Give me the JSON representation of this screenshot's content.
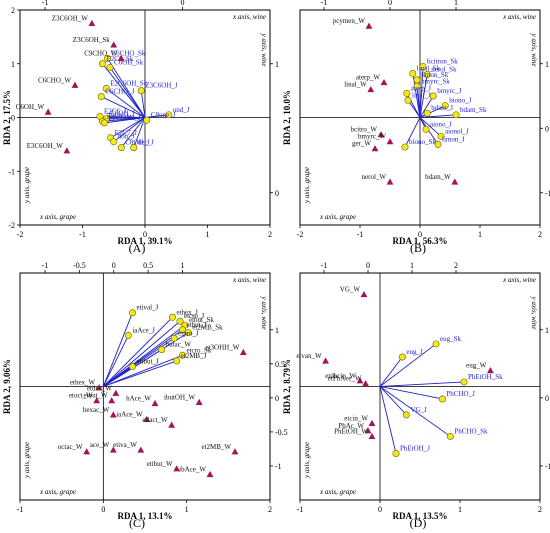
{
  "chart_data": [
    {
      "type": "scatter",
      "panel_label": "(A)",
      "xlabel": "RDA 1, 39.1%",
      "ylabel": "RDA 2, 17.5%",
      "corner_labels": {
        "top_right": "x axis, wine",
        "right_side": "y axis, wine",
        "left_side": "y axis, grape",
        "bottom_left": "x axis, grape"
      },
      "bottom_axis": {
        "ticks": [
          -2,
          -1,
          0,
          1,
          2
        ]
      },
      "top_axis": {
        "ticks": [
          -1,
          0
        ]
      },
      "right_axis": {
        "ticks": [
          1,
          0
        ]
      },
      "left_axis": {
        "ticks": [
          2,
          1,
          0,
          -1,
          -2
        ]
      },
      "series": [
        {
          "name": "grape",
          "marker": "circle",
          "color": "#f5e61e",
          "label_color": "#1f1fd6",
          "points": [
            {
              "label": "C6CHO_Sk",
              "x": -0.6,
              "y": 1.1
            },
            {
              "label": "E2C6_Sk",
              "x": -0.68,
              "y": 1.0
            },
            {
              "label": "C6OH_Sk",
              "x": -0.56,
              "y": 0.93
            },
            {
              "label": "E2C6OH_Sk",
              "x": -0.62,
              "y": 0.54
            },
            {
              "label": "C6CHO_J",
              "x": -0.7,
              "y": 0.39
            },
            {
              "label": "Z3C6OH_J",
              "x": -0.06,
              "y": 0.5
            },
            {
              "label": "und_J",
              "x": 0.38,
              "y": 0.05
            },
            {
              "label": "C8one_J",
              "x": 0.03,
              "y": -0.05
            },
            {
              "label": "E2C6_J",
              "x": -0.72,
              "y": 0.02
            },
            {
              "label": "C6OH_J",
              "x": -0.62,
              "y": -0.02
            },
            {
              "label": "Z3C6_J",
              "x": -0.68,
              "y": -0.07
            },
            {
              "label": "E2C6OH_J",
              "x": -0.65,
              "y": -0.1
            },
            {
              "label": "E2C7_J",
              "x": -0.55,
              "y": -0.38
            },
            {
              "label": "non_J",
              "x": -0.5,
              "y": -0.45
            },
            {
              "label": "C8OH_J",
              "x": -0.38,
              "y": -0.56
            },
            {
              "label": "dec_J",
              "x": -0.18,
              "y": -0.56
            }
          ]
        },
        {
          "name": "wine",
          "marker": "triangle",
          "color": "#a2135a",
          "label_color": "#111111",
          "points": [
            {
              "label": "Z3C6OH_W",
              "x": -0.85,
              "y": 1.75
            },
            {
              "label": "Z3C6OH_Sk",
              "x": -0.5,
              "y": 1.35
            },
            {
              "label": "C9CHO_W",
              "x": -0.38,
              "y": 1.1
            },
            {
              "label": "C6CHO_W",
              "x": -1.12,
              "y": 0.6
            },
            {
              "label": "C6OH_W",
              "x": -1.55,
              "y": 0.1
            },
            {
              "label": "E3C6OH_W",
              "x": -1.25,
              "y": -0.62
            }
          ]
        }
      ]
    },
    {
      "type": "scatter",
      "panel_label": "(B)",
      "xlabel": "RDA 1, 56.3%",
      "ylabel": "RDA 2, 10.0%",
      "corner_labels": {
        "top_right": "x axis, wine",
        "right_side": "y axis, wine",
        "left_side": "y axis, grape",
        "bottom_left": "x axis, grape"
      },
      "bottom_axis": {
        "ticks": [
          -2,
          -1,
          0,
          1,
          2
        ]
      },
      "top_axis": {
        "ticks": [
          -1,
          0,
          1
        ]
      },
      "right_axis": {
        "ticks": [
          1,
          0,
          -1
        ]
      },
      "left_axis": {
        "ticks": []
      },
      "series": [
        {
          "name": "grape",
          "marker": "circle",
          "color": "#f5e61e",
          "label_color": "#1f1fd6",
          "points": [
            {
              "label": "bcitron_Sk",
              "x": 0.05,
              "y": 0.95
            },
            {
              "label": "linal_Sk",
              "x": -0.12,
              "y": 0.82
            },
            {
              "label": "nerol_Sk",
              "x": 0.12,
              "y": 0.8
            },
            {
              "label": "limon_Sk",
              "x": -0.05,
              "y": 0.7
            },
            {
              "label": "bmyrc_Sk",
              "x": -0.05,
              "y": 0.58
            },
            {
              "label": "aterp_J",
              "x": -0.22,
              "y": 0.45
            },
            {
              "label": "linal_J",
              "x": -0.2,
              "y": 0.32
            },
            {
              "label": "bmyrc_J",
              "x": 0.22,
              "y": 0.4
            },
            {
              "label": "biono_J",
              "x": 0.42,
              "y": 0.22
            },
            {
              "label": "bdam_J",
              "x": 0.12,
              "y": 0.08
            },
            {
              "label": "bdam_Sk",
              "x": 0.6,
              "y": 0.05
            },
            {
              "label": "aiono_J",
              "x": 0.1,
              "y": -0.22
            },
            {
              "label": "aionol_J",
              "x": 0.35,
              "y": -0.35
            },
            {
              "label": "limon_J",
              "x": 0.3,
              "y": -0.5
            },
            {
              "label": "biono_Sk",
              "x": -0.25,
              "y": -0.55
            }
          ]
        },
        {
          "name": "wine",
          "marker": "triangle",
          "color": "#a2135a",
          "label_color": "#111111",
          "points": [
            {
              "label": "pcymen_W",
              "x": -0.85,
              "y": 1.7
            },
            {
              "label": "aterp_W",
              "x": -0.6,
              "y": 0.65
            },
            {
              "label": "linal_W",
              "x": -0.82,
              "y": 0.52
            },
            {
              "label": "bcitro_W",
              "x": -0.65,
              "y": -0.32
            },
            {
              "label": "bmyrc_W",
              "x": -0.5,
              "y": -0.45
            },
            {
              "label": "ger_W",
              "x": -0.75,
              "y": -0.58
            },
            {
              "label": "nerol_W",
              "x": -0.5,
              "y": -1.2
            },
            {
              "label": "bdam_W",
              "x": 0.58,
              "y": -1.2
            }
          ]
        }
      ]
    },
    {
      "type": "scatter",
      "panel_label": "(C)",
      "xlabel": "RDA 1, 13.1%",
      "ylabel": "RDA 2, 9.06%",
      "corner_labels": {
        "top_right": "x axis, wine",
        "right_side": "y axis, wine",
        "left_side": "y axis, grape",
        "bottom_left": "x axis, grape"
      },
      "bottom_axis": {
        "ticks": [
          -1,
          0,
          1,
          2
        ]
      },
      "top_axis": {
        "ticks": [
          -1,
          -0.5,
          0,
          0.5,
          1
        ]
      },
      "right_axis": {
        "ticks": [
          1,
          0.5,
          0,
          -0.5,
          -1
        ]
      },
      "left_axis": {
        "ticks": []
      },
      "series": [
        {
          "name": "grape",
          "marker": "circle",
          "color": "#f5e61e",
          "label_color": "#111111",
          "points": [
            {
              "label": "etival_J",
              "x": 0.35,
              "y": 1.3
            },
            {
              "label": "ethex_J",
              "x": 0.83,
              "y": 1.22
            },
            {
              "label": "etcro_J",
              "x": 0.92,
              "y": 1.15
            },
            {
              "label": "etbut_Sk",
              "x": 0.98,
              "y": 1.08
            },
            {
              "label": "etbut_J",
              "x": 0.95,
              "y": 1.0
            },
            {
              "label": "et2MB_Sk",
              "x": 1.02,
              "y": 0.95
            },
            {
              "label": "etpro_J",
              "x": 0.85,
              "y": 0.85
            },
            {
              "label": "iaAce_J",
              "x": 0.3,
              "y": 0.9
            },
            {
              "label": "butac_W",
              "x": 0.7,
              "y": 0.65
            },
            {
              "label": "etcro_Sk",
              "x": 0.95,
              "y": 0.55
            },
            {
              "label": "et2MB_J",
              "x": 0.88,
              "y": 0.45
            },
            {
              "label": "etibut_J",
              "x": 0.35,
              "y": 0.35
            }
          ]
        },
        {
          "name": "wine",
          "marker": "triangle",
          "color": "#a2135a",
          "label_color": "#111111",
          "points": [
            {
              "label": "et3OHH_W",
              "x": 1.68,
              "y": 0.6
            },
            {
              "label": "ethex_W",
              "x": -0.05,
              "y": -0.02
            },
            {
              "label": "etdec_W",
              "x": 0.15,
              "y": -0.12
            },
            {
              "label": "etoct_W",
              "x": -0.08,
              "y": -0.25
            },
            {
              "label": "etbut_W",
              "x": 0.1,
              "y": -0.25
            },
            {
              "label": "hAce_W",
              "x": 0.62,
              "y": -0.3
            },
            {
              "label": "ibutOH_W",
              "x": 1.15,
              "y": -0.28
            },
            {
              "label": "hexac_W",
              "x": 0.12,
              "y": -0.5
            },
            {
              "label": "iaAce_W",
              "x": 0.52,
              "y": -0.58
            },
            {
              "label": "etlact_W",
              "x": 0.82,
              "y": -0.68
            },
            {
              "label": "octac_W",
              "x": -0.2,
              "y": -1.15
            },
            {
              "label": "ace_W",
              "x": 0.12,
              "y": -1.12
            },
            {
              "label": "etiva_W",
              "x": 0.45,
              "y": -1.12
            },
            {
              "label": "et2MB_W",
              "x": 1.58,
              "y": -1.15
            },
            {
              "label": "etibut_W",
              "x": 0.88,
              "y": -1.45
            },
            {
              "label": "ibAce_W",
              "x": 1.28,
              "y": -1.55
            }
          ]
        }
      ]
    },
    {
      "type": "scatter",
      "panel_label": "(D)",
      "xlabel": "RDA 1, 13.5%",
      "ylabel": "RDA 2, 8.79%",
      "corner_labels": {
        "top_right": "x axis, wine",
        "right_side": "y axis, wine",
        "left_side": "y axis, grape",
        "bottom_left": "x axis, grape"
      },
      "bottom_axis": {
        "ticks": [
          -1,
          0,
          1,
          2
        ]
      },
      "top_axis": {
        "ticks": [
          -1,
          0,
          1,
          2
        ]
      },
      "right_axis": {
        "ticks": [
          1,
          0,
          -1
        ]
      },
      "left_axis": {
        "ticks": []
      },
      "series": [
        {
          "name": "grape",
          "marker": "circle",
          "color": "#f5e61e",
          "label_color": "#1f1fd6",
          "points": [
            {
              "label": "eug_Sk",
              "x": 0.7,
              "y": 0.75
            },
            {
              "label": "eug_J",
              "x": 0.28,
              "y": 0.52
            },
            {
              "label": "PhEtOH_Sk",
              "x": 1.05,
              "y": 0.08
            },
            {
              "label": "PhCHO_J",
              "x": 0.78,
              "y": -0.22
            },
            {
              "label": "VG_J",
              "x": 0.33,
              "y": -0.5
            },
            {
              "label": "PhCHO_Sk",
              "x": 0.88,
              "y": -0.88
            },
            {
              "label": "PhEtOH_J",
              "x": 0.2,
              "y": -1.18
            }
          ]
        },
        {
          "name": "wine",
          "marker": "triangle",
          "color": "#a2135a",
          "label_color": "#111111",
          "points": [
            {
              "label": "VG_W",
              "x": -0.2,
              "y": 1.62
            },
            {
              "label": "eug_W",
              "x": 1.38,
              "y": 0.28
            },
            {
              "label": "etvan_W",
              "x": -0.68,
              "y": 0.45
            },
            {
              "label": "etdhcin_W",
              "x": -0.25,
              "y": 0.1
            },
            {
              "label": "etPhAce_W",
              "x": -0.18,
              "y": 0.05
            },
            {
              "label": "etcin_W",
              "x": -0.1,
              "y": -0.65
            },
            {
              "label": "PhAc_W",
              "x": -0.15,
              "y": -0.78
            },
            {
              "label": "PhEtOH_W",
              "x": -0.1,
              "y": -0.88
            }
          ]
        }
      ]
    }
  ]
}
